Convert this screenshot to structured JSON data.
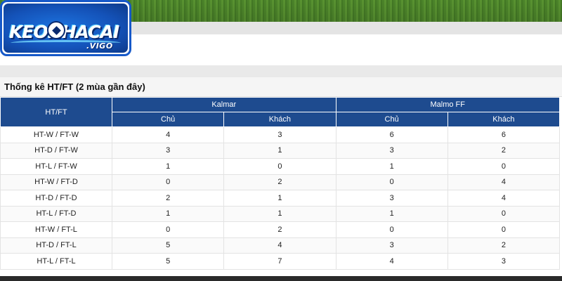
{
  "logo": {
    "main_text": "KEONHACAI",
    "sub_text": ".VIGO"
  },
  "stats": {
    "title": "Thống kê HT/FT (2 mùa gần đây)",
    "row_header": "HT/FT",
    "teams": [
      "Kalmar",
      "Malmo FF"
    ],
    "subheaders": [
      "Chủ",
      "Khách",
      "Chủ",
      "Khách"
    ],
    "rows": [
      {
        "label": "HT-W / FT-W",
        "values": [
          "4",
          "3",
          "6",
          "6"
        ]
      },
      {
        "label": "HT-D / FT-W",
        "values": [
          "3",
          "1",
          "3",
          "2"
        ]
      },
      {
        "label": "HT-L / FT-W",
        "values": [
          "1",
          "0",
          "1",
          "0"
        ]
      },
      {
        "label": "HT-W / FT-D",
        "values": [
          "0",
          "2",
          "0",
          "4"
        ]
      },
      {
        "label": "HT-D / FT-D",
        "values": [
          "2",
          "1",
          "3",
          "4"
        ]
      },
      {
        "label": "HT-L / FT-D",
        "values": [
          "1",
          "1",
          "1",
          "0"
        ]
      },
      {
        "label": "HT-W / FT-L",
        "values": [
          "0",
          "2",
          "0",
          "0"
        ]
      },
      {
        "label": "HT-D / FT-L",
        "values": [
          "5",
          "4",
          "3",
          "2"
        ]
      },
      {
        "label": "HT-L / FT-L",
        "values": [
          "5",
          "7",
          "4",
          "3"
        ]
      }
    ]
  },
  "colors": {
    "header_bg": "#1e4b8f",
    "logo_border": "#1659c9"
  }
}
